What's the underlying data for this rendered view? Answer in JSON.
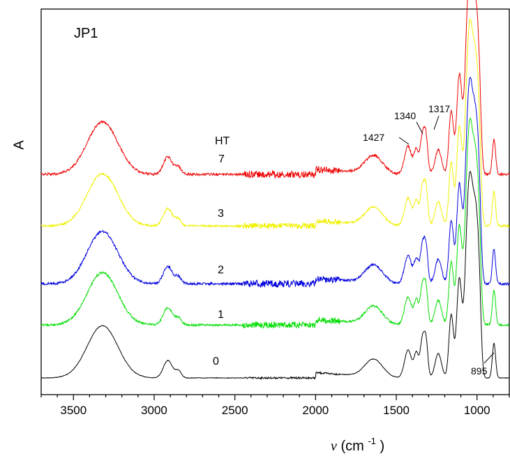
{
  "chart_data": {
    "type": "line",
    "panel_label": "JP1",
    "legend_title": "HT",
    "xlabel_symbol": "ν",
    "xlabel_unit_base": "(cm",
    "xlabel_unit_exp": "-1",
    "xlabel_unit_close": ")",
    "ylabel": "A",
    "xlim": [
      3700,
      800
    ],
    "x_reversed": true,
    "x_ticks": [
      3500,
      3000,
      2500,
      2000,
      1500,
      1000
    ],
    "y_ticks_shown": false,
    "grid": false,
    "series": [
      {
        "name": "0",
        "color": "#000000",
        "noise": 0.4,
        "peak_labels": [
          "895"
        ]
      },
      {
        "name": "1",
        "color": "#00dd00",
        "noise": 1.4,
        "peak_labels": []
      },
      {
        "name": "2",
        "color": "#0000dd",
        "noise": 1.6,
        "peak_labels": []
      },
      {
        "name": "3",
        "color": "#f0f000",
        "noise": 1.3,
        "peak_labels": []
      },
      {
        "name": "7",
        "color": "#ee0000",
        "noise": 1.6,
        "peak_labels": [
          "1427",
          "1340",
          "1317"
        ]
      }
    ],
    "annotations": [
      {
        "text": "1427",
        "series": "7",
        "x": 1427
      },
      {
        "text": "1340",
        "series": "7",
        "x": 1340
      },
      {
        "text": "1317",
        "series": "7",
        "x": 1317
      },
      {
        "text": "895",
        "series": "0",
        "x": 895
      }
    ]
  }
}
